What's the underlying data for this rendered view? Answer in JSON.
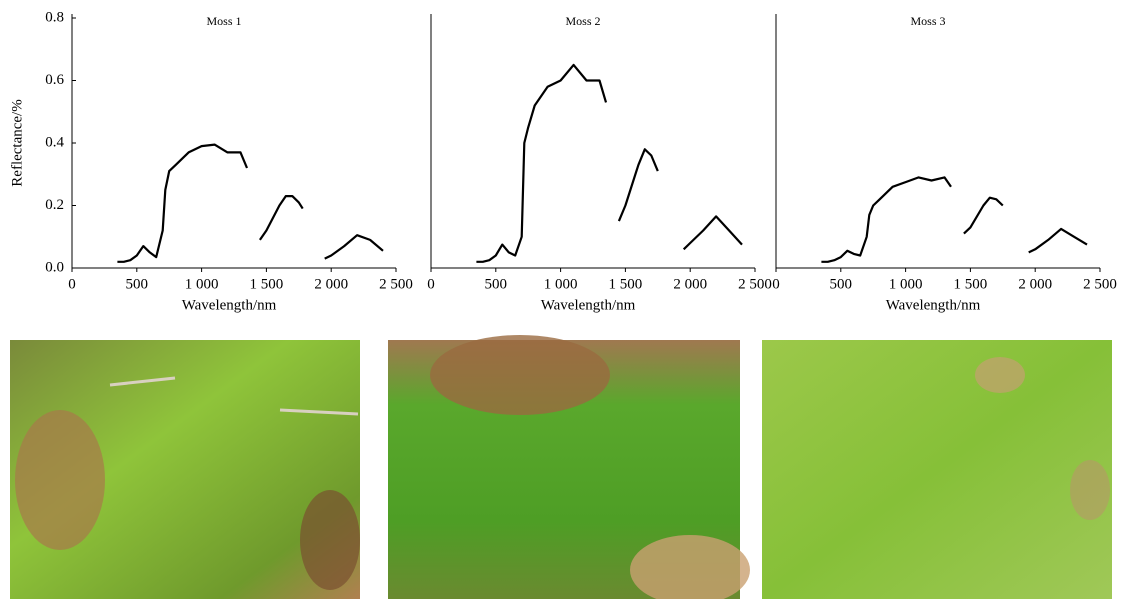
{
  "chart_data": [
    {
      "type": "line",
      "title": "Moss 1",
      "xlabel": "Wavelength/nm",
      "ylabel": "Reflectance/%",
      "color": "#000000",
      "x": [
        350,
        400,
        450,
        500,
        550,
        600,
        650,
        700,
        720,
        750,
        800,
        900,
        1000,
        1100,
        1200,
        1300,
        1350,
        1400,
        1450,
        1500,
        1600,
        1650,
        1700,
        1750,
        1780,
        1850,
        1950,
        2000,
        2100,
        2200,
        2300,
        2400
      ],
      "values": [
        0.02,
        0.02,
        0.025,
        0.04,
        0.07,
        0.05,
        0.035,
        0.12,
        0.25,
        0.31,
        0.33,
        0.37,
        0.39,
        0.395,
        0.37,
        0.37,
        0.32,
        null,
        0.09,
        0.12,
        0.2,
        0.23,
        0.23,
        0.21,
        0.19,
        null,
        0.03,
        0.04,
        0.07,
        0.105,
        0.09,
        0.055
      ],
      "xlim": [
        0,
        2500
      ],
      "xticks": [
        0,
        500,
        {
          "value": 1000,
          "label": "1 000"
        },
        {
          "value": 1500,
          "label": "1 500"
        },
        {
          "value": 2000,
          "label": "2 000"
        },
        {
          "value": 2500,
          "label": "2 500"
        }
      ],
      "ylim": [
        0,
        0.8
      ],
      "yticks": [
        {
          "value": 0,
          "label": "0.0"
        },
        0.2,
        0.4,
        0.6,
        0.8
      ]
    },
    {
      "type": "line",
      "title": "Moss 2",
      "xlabel": "Wavelength/nm",
      "color": "#000000",
      "x": [
        350,
        400,
        450,
        500,
        550,
        600,
        650,
        700,
        720,
        750,
        800,
        900,
        1000,
        1100,
        1200,
        1300,
        1350,
        1400,
        1450,
        1500,
        1600,
        1650,
        1700,
        1750,
        1780,
        1850,
        1950,
        2000,
        2100,
        2200,
        2300,
        2400
      ],
      "values": [
        0.02,
        0.02,
        0.025,
        0.04,
        0.075,
        0.05,
        0.04,
        0.1,
        0.4,
        0.45,
        0.52,
        0.58,
        0.6,
        0.65,
        0.6,
        0.6,
        0.53,
        null,
        0.15,
        0.2,
        0.33,
        0.38,
        0.36,
        0.31,
        null,
        null,
        0.06,
        0.08,
        0.12,
        0.165,
        0.12,
        0.075
      ],
      "xlim": [
        0,
        2500
      ],
      "xticks": [
        0,
        500,
        {
          "value": 1000,
          "label": "1 000"
        },
        {
          "value": 1500,
          "label": "1 500"
        },
        {
          "value": 2000,
          "label": "2 000"
        },
        {
          "value": 2500,
          "label": "2 500"
        }
      ],
      "ylim": [
        0,
        0.8
      ]
    },
    {
      "type": "line",
      "title": "Moss 3",
      "xlabel": "Wavelength/nm",
      "color": "#000000",
      "x": [
        350,
        400,
        450,
        500,
        550,
        600,
        650,
        700,
        720,
        750,
        800,
        900,
        1000,
        1100,
        1200,
        1300,
        1350,
        1400,
        1450,
        1500,
        1600,
        1650,
        1700,
        1750,
        1780,
        1850,
        1950,
        2000,
        2100,
        2200,
        2300,
        2400
      ],
      "values": [
        0.02,
        0.02,
        0.025,
        0.035,
        0.055,
        0.045,
        0.04,
        0.1,
        0.17,
        0.2,
        0.22,
        0.26,
        0.275,
        0.29,
        0.28,
        0.29,
        0.26,
        null,
        0.11,
        0.13,
        0.2,
        0.225,
        0.22,
        0.2,
        null,
        null,
        0.05,
        0.06,
        0.09,
        0.125,
        0.1,
        0.075
      ],
      "xlim": [
        0,
        2500
      ],
      "xticks": [
        0,
        500,
        {
          "value": 1000,
          "label": "1 000"
        },
        {
          "value": 1500,
          "label": "1 500"
        },
        {
          "value": 2000,
          "label": "2 000"
        },
        {
          "value": 2500,
          "label": "2 500"
        }
      ],
      "ylim": [
        0,
        0.8
      ]
    }
  ]
}
